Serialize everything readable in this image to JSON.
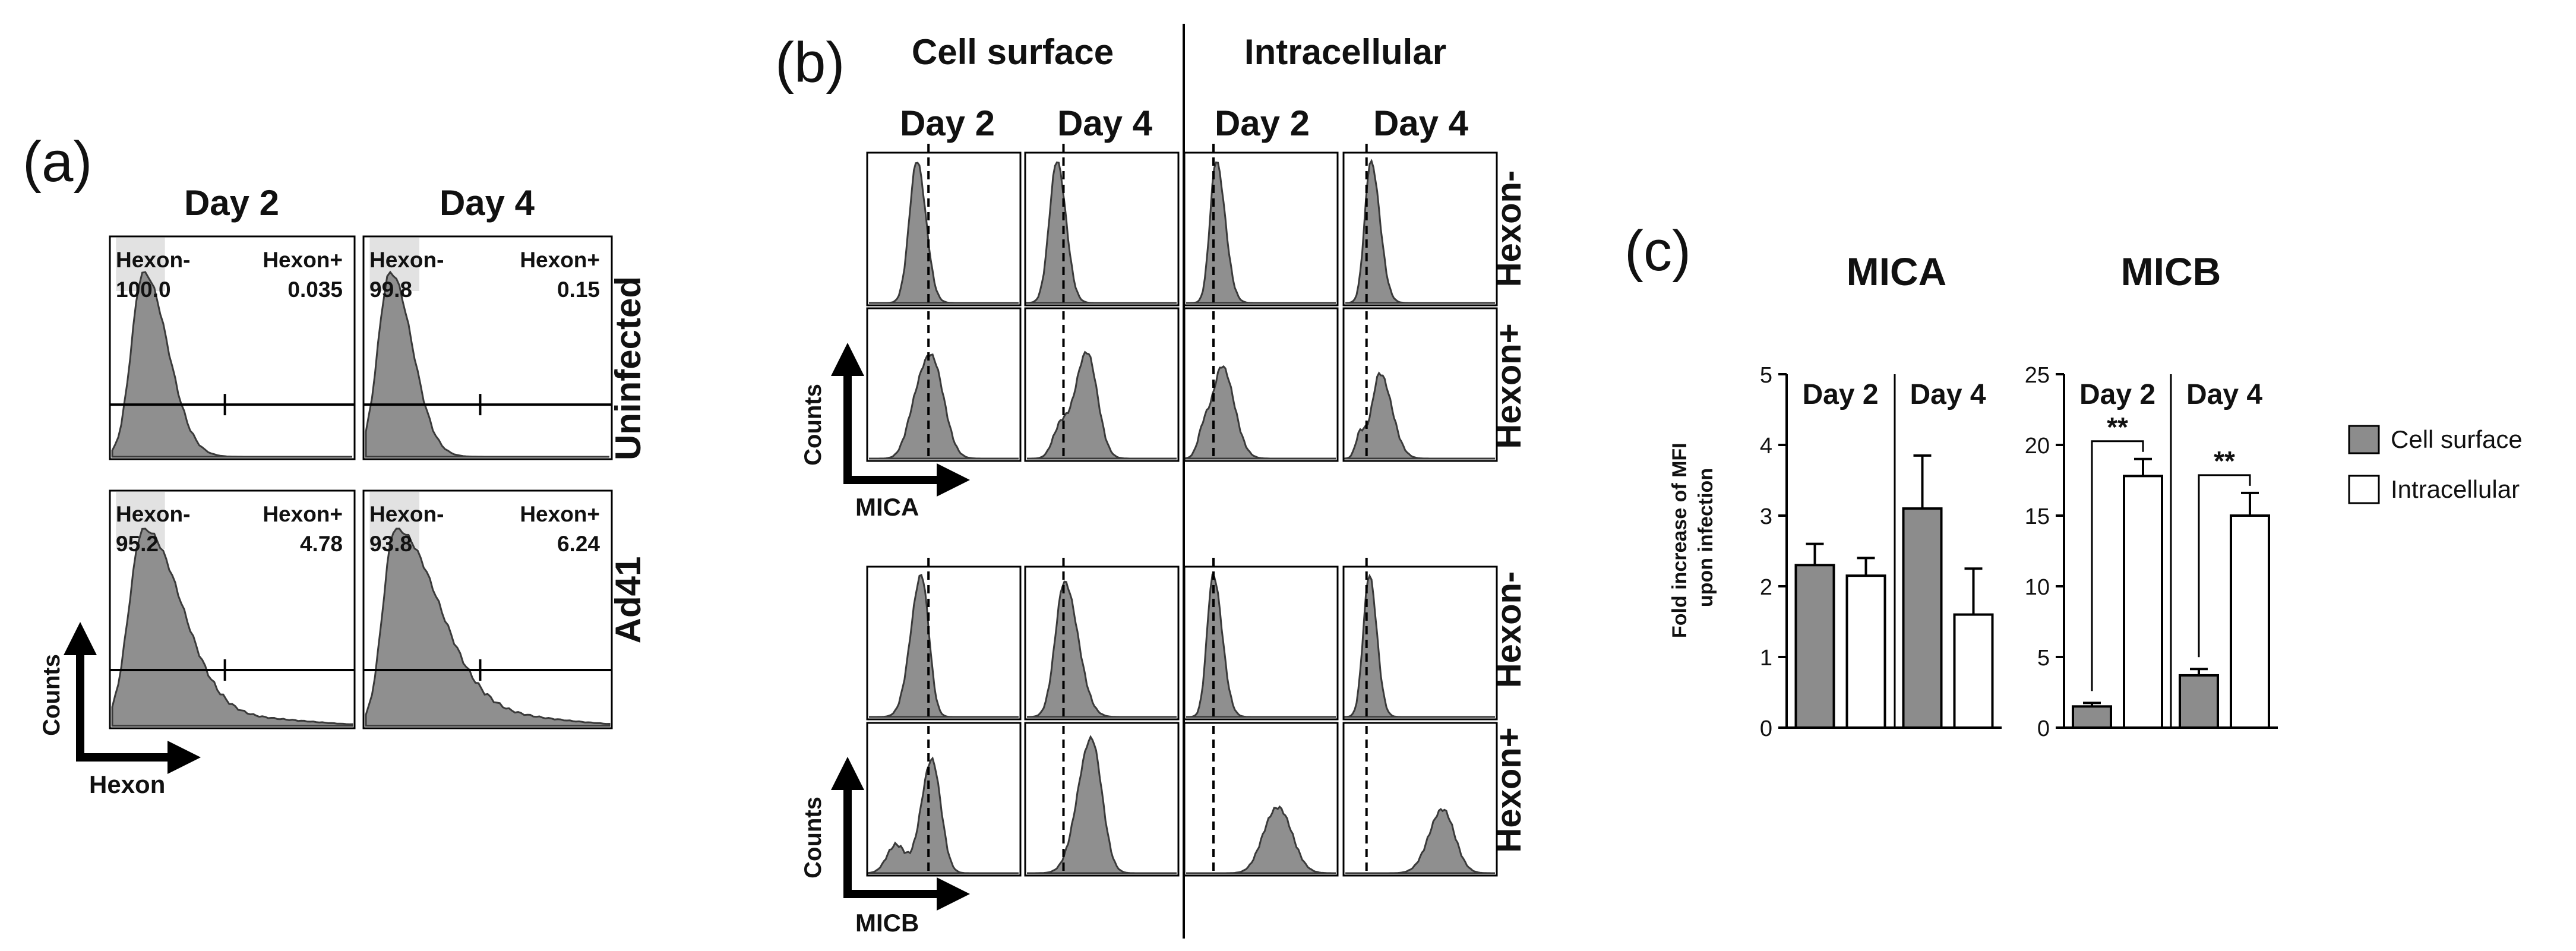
{
  "panel_a": {
    "label": "(a)",
    "columns": [
      "Day 2",
      "Day 4"
    ],
    "rows": [
      "Uninfected",
      "Ad41"
    ],
    "gate_labels": {
      "neg": "Hexon-",
      "pos": "Hexon+"
    },
    "gate_values": [
      [
        {
          "neg": "100.0",
          "pos": "0.035"
        },
        {
          "neg": "99.8",
          "pos": "0.15"
        }
      ],
      [
        {
          "neg": "95.2",
          "pos": "4.78"
        },
        {
          "neg": "93.8",
          "pos": "6.24"
        }
      ]
    ],
    "y_axis": "Counts",
    "x_axis": "Hexon"
  },
  "panel_b": {
    "label": "(b)",
    "groups": [
      "Cell surface",
      "Intracellular"
    ],
    "days": [
      "Day 2",
      "Day 4",
      "Day 2",
      "Day 4"
    ],
    "row_labels": [
      "Hexon-",
      "Hexon+",
      "Hexon-",
      "Hexon+"
    ],
    "y_axis_mica": "Counts",
    "x_axis_mica": "MICA",
    "y_axis_micb": "Counts",
    "x_axis_micb": "MICB"
  },
  "panel_c": {
    "label": "(c)",
    "ylabel": "Fold increase of MFI upon infection",
    "legend": [
      {
        "name": "Cell surface",
        "color": "#8c8c8c"
      },
      {
        "name": "Intracellular",
        "color": "#ffffff"
      }
    ],
    "significance": "**"
  },
  "chart_data": [
    {
      "type": "bar",
      "title": "MICA",
      "categories": [
        "Day 2",
        "Day 4"
      ],
      "series": [
        {
          "name": "Cell surface",
          "values": [
            2.3,
            3.1
          ],
          "errors": [
            0.3,
            0.75
          ]
        },
        {
          "name": "Intracellular",
          "values": [
            2.15,
            1.6
          ],
          "errors": [
            0.25,
            0.65
          ]
        }
      ],
      "ylabel": "Fold increase of MFI upon infection",
      "ylim": [
        0,
        5
      ],
      "yticks": [
        0,
        1,
        2,
        3,
        4,
        5
      ]
    },
    {
      "type": "bar",
      "title": "MICB",
      "categories": [
        "Day 2",
        "Day 4"
      ],
      "series": [
        {
          "name": "Cell surface",
          "values": [
            1.5,
            3.7
          ],
          "errors": [
            0.25,
            0.45
          ]
        },
        {
          "name": "Intracellular",
          "values": [
            17.8,
            15.0
          ],
          "errors": [
            1.2,
            1.6
          ]
        }
      ],
      "ylim": [
        0,
        25
      ],
      "yticks": [
        0,
        5,
        10,
        15,
        20,
        25
      ],
      "annotations": [
        "**",
        "**"
      ]
    }
  ]
}
